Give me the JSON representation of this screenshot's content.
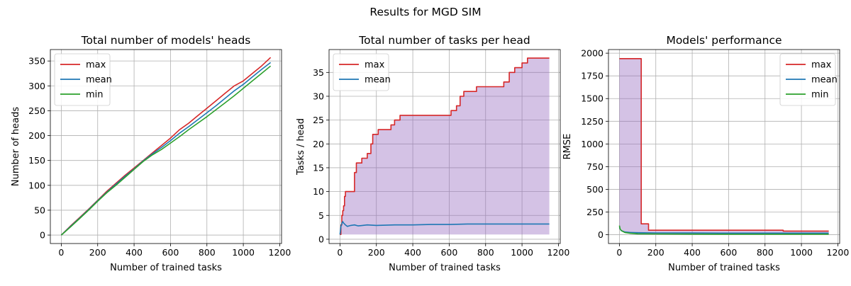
{
  "figure": {
    "suptitle": "Results for MGD SIM"
  },
  "colors": {
    "max": "#d62728",
    "mean": "#1f77b4",
    "min": "#2ca02c",
    "fill": "#9467bd"
  },
  "chart_data": [
    {
      "type": "line",
      "title": "Total number of models' heads",
      "xlabel": "Number of trained tasks",
      "ylabel": "Number of heads",
      "xlim": [
        -60,
        1210
      ],
      "ylim": [
        -17,
        373
      ],
      "xticks": [
        0,
        200,
        400,
        600,
        800,
        1000,
        1200
      ],
      "yticks": [
        0,
        50,
        100,
        150,
        200,
        250,
        300,
        350
      ],
      "grid": true,
      "legend": {
        "position": "top-left",
        "entries": [
          "max",
          "mean",
          "min"
        ]
      },
      "series": [
        {
          "name": "max",
          "color": "#d62728",
          "x": [
            0,
            50,
            100,
            150,
            200,
            250,
            300,
            350,
            400,
            450,
            500,
            550,
            600,
            650,
            700,
            750,
            800,
            850,
            900,
            950,
            1000,
            1050,
            1100,
            1150
          ],
          "y": [
            0,
            18,
            35,
            52,
            70,
            88,
            104,
            120,
            135,
            150,
            165,
            180,
            195,
            212,
            225,
            240,
            255,
            270,
            285,
            300,
            310,
            325,
            340,
            357
          ]
        },
        {
          "name": "mean",
          "color": "#1f77b4",
          "x": [
            0,
            50,
            100,
            150,
            200,
            250,
            300,
            350,
            400,
            450,
            500,
            550,
            600,
            650,
            700,
            750,
            800,
            850,
            900,
            950,
            1000,
            1050,
            1100,
            1150
          ],
          "y": [
            0,
            17,
            34,
            51,
            69,
            86,
            102,
            118,
            133,
            149,
            163,
            176,
            190,
            205,
            218,
            232,
            246,
            260,
            275,
            290,
            303,
            318,
            333,
            347
          ]
        },
        {
          "name": "min",
          "color": "#2ca02c",
          "x": [
            0,
            50,
            100,
            150,
            200,
            250,
            300,
            350,
            400,
            450,
            500,
            550,
            600,
            650,
            700,
            750,
            800,
            850,
            900,
            950,
            1000,
            1050,
            1100,
            1150
          ],
          "y": [
            0,
            16,
            33,
            50,
            68,
            85,
            100,
            116,
            132,
            148,
            161,
            172,
            185,
            198,
            212,
            225,
            238,
            252,
            266,
            280,
            295,
            310,
            325,
            340
          ]
        }
      ]
    },
    {
      "type": "area",
      "title": "Total number of tasks per head",
      "xlabel": "Number of trained tasks",
      "ylabel": "Tasks / head",
      "xlim": [
        -60,
        1210
      ],
      "ylim": [
        -0.9,
        39.8
      ],
      "xticks": [
        0,
        200,
        400,
        600,
        800,
        1000,
        1200
      ],
      "yticks": [
        0,
        5,
        10,
        15,
        20,
        25,
        30,
        35
      ],
      "grid": true,
      "legend": {
        "position": "top-left",
        "entries": [
          "max",
          "mean"
        ]
      },
      "band": {
        "lower": 1,
        "upper_series": "max",
        "color": "#9467bd"
      },
      "series": [
        {
          "name": "max",
          "color": "#d62728",
          "step": true,
          "x": [
            0,
            5,
            10,
            15,
            20,
            25,
            30,
            80,
            90,
            120,
            150,
            170,
            180,
            190,
            210,
            280,
            300,
            330,
            500,
            610,
            640,
            660,
            680,
            750,
            900,
            930,
            960,
            1000,
            1030,
            1150
          ],
          "y": [
            1,
            3,
            5,
            6,
            7,
            9,
            10,
            14,
            16,
            17,
            18,
            20,
            22,
            22,
            23,
            24,
            25,
            26,
            26,
            27,
            28,
            30,
            31,
            32,
            33,
            35,
            36,
            37,
            38,
            38
          ]
        },
        {
          "name": "mean",
          "color": "#1f77b4",
          "x": [
            0,
            5,
            10,
            15,
            20,
            30,
            40,
            60,
            80,
            100,
            150,
            200,
            300,
            400,
            500,
            600,
            700,
            800,
            900,
            1000,
            1100,
            1150
          ],
          "y": [
            1,
            2.6,
            3.3,
            3.7,
            3.4,
            3.0,
            2.7,
            2.9,
            3.0,
            2.8,
            3.0,
            2.9,
            3.0,
            3.0,
            3.1,
            3.1,
            3.2,
            3.2,
            3.2,
            3.2,
            3.2,
            3.2
          ]
        }
      ]
    },
    {
      "type": "line",
      "title": "Models' performance",
      "xlabel": "Number of trained tasks",
      "ylabel": "RMSE",
      "xlim": [
        -60,
        1210
      ],
      "ylim": [
        -97,
        2040
      ],
      "xticks": [
        0,
        200,
        400,
        600,
        800,
        1000,
        1200
      ],
      "yticks": [
        0,
        250,
        500,
        750,
        1000,
        1250,
        1500,
        1750,
        2000
      ],
      "grid": true,
      "legend": {
        "position": "top-right",
        "entries": [
          "max",
          "mean",
          "min"
        ]
      },
      "band": {
        "lower_series": "min",
        "upper_series": "max",
        "color": "#9467bd"
      },
      "series": [
        {
          "name": "max",
          "color": "#d62728",
          "step": true,
          "x": [
            0,
            120,
            160,
            900,
            1150
          ],
          "y": [
            1940,
            120,
            50,
            40,
            40
          ]
        },
        {
          "name": "mean",
          "color": "#1f77b4",
          "x": [
            0,
            10,
            30,
            60,
            100,
            200,
            400,
            600,
            800,
            1000,
            1150
          ],
          "y": [
            80,
            45,
            30,
            25,
            22,
            20,
            19,
            18,
            18,
            18,
            18
          ]
        },
        {
          "name": "min",
          "color": "#2ca02c",
          "x": [
            0,
            5,
            15,
            30,
            60,
            100,
            200,
            400,
            600,
            800,
            1000,
            1150
          ],
          "y": [
            100,
            60,
            40,
            25,
            15,
            10,
            8,
            7,
            6,
            6,
            6,
            6
          ]
        }
      ]
    }
  ]
}
